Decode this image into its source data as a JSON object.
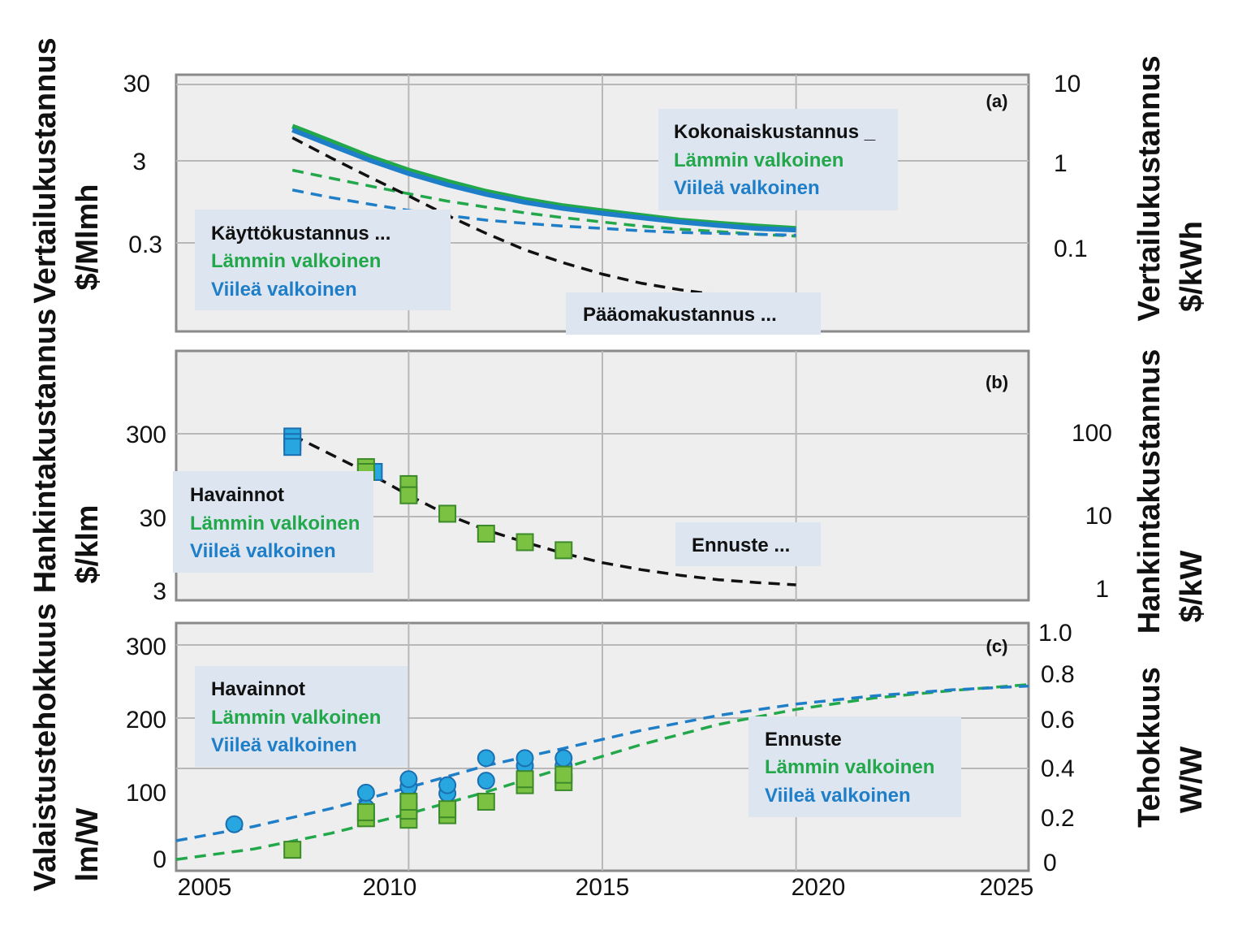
{
  "colors": {
    "warm": "#22a84a",
    "warm_marker": "#7cc242",
    "cool": "#1f7ec8",
    "cool_line": "#5ab4ea",
    "cool_marker": "#27a6e0",
    "black": "#111111",
    "panel_bg": "#eeeeee",
    "legend_bg": "#dde5f0"
  },
  "x_axis": {
    "range": [
      2004,
      2026
    ],
    "ticks": [
      "2005",
      "2010",
      "2015",
      "2020",
      "2025"
    ]
  },
  "chart_data": [
    {
      "panel_label": "(a)",
      "type": "line",
      "title": "",
      "xlabel": "",
      "ylabel": [
        "Vertailukustannus",
        "$/Mlmh"
      ],
      "y2label": [
        "Vertailukustannus",
        "$/kWh"
      ],
      "yscale": "log",
      "ylim": [
        0.03,
        30
      ],
      "y_ticks": [
        "30",
        "3",
        "0.3"
      ],
      "y2_ticks": [
        "10",
        "1",
        "0.1"
      ],
      "x": [
        2007,
        2008,
        2009,
        2010,
        2011,
        2012,
        2013,
        2014,
        2015,
        2016,
        2017,
        2018,
        2019,
        2020
      ],
      "series": [
        {
          "name": "Kokonaiskustannus – Lämmin valkoinen",
          "style": "solid",
          "color": "warm",
          "values": [
            7.5,
            5.0,
            3.3,
            2.3,
            1.7,
            1.3,
            1.05,
            0.88,
            0.77,
            0.68,
            0.6,
            0.55,
            0.51,
            0.48
          ]
        },
        {
          "name": "Kokonaiskustannus – Viileä valkoinen",
          "style": "solid",
          "color": "cool",
          "values": [
            6.8,
            4.5,
            3.0,
            2.1,
            1.55,
            1.2,
            0.97,
            0.82,
            0.72,
            0.64,
            0.57,
            0.52,
            0.48,
            0.46
          ]
        },
        {
          "name": "Käyttökustannus – Lämmin valkoinen",
          "style": "dashed",
          "color": "warm",
          "values": [
            2.3,
            1.85,
            1.5,
            1.22,
            1.0,
            0.85,
            0.73,
            0.64,
            0.57,
            0.51,
            0.47,
            0.44,
            0.41,
            0.39
          ]
        },
        {
          "name": "Käyttökustannus – Viileä valkoinen",
          "style": "dashed",
          "color": "cool",
          "values": [
            1.35,
            1.1,
            0.92,
            0.78,
            0.68,
            0.6,
            0.55,
            0.51,
            0.48,
            0.45,
            0.43,
            0.42,
            0.41,
            0.4
          ]
        },
        {
          "name": "Pääomakustannus",
          "style": "dashed",
          "color": "black",
          "values": [
            5.5,
            3.2,
            1.9,
            1.15,
            0.68,
            0.42,
            0.27,
            0.19,
            0.14,
            0.11,
            0.092,
            0.08,
            0.07,
            0.063
          ]
        }
      ],
      "legends": [
        {
          "title": "Kokonaiskustannus _",
          "warm": "Lämmin valkoinen",
          "cool": "Viileä valkoinen"
        },
        {
          "title": "Käyttökustannus ...",
          "warm": "Lämmin valkoinen",
          "cool": "Viileä valkoinen"
        },
        {
          "title": "Pääomakustannus ..."
        }
      ]
    },
    {
      "panel_label": "(b)",
      "type": "scatter",
      "title": "",
      "xlabel": "",
      "ylabel": [
        "Hankintakustannus",
        "$/klm"
      ],
      "y2label": [
        "Hankintakustannus",
        "$/kW"
      ],
      "yscale": "log",
      "ylim": [
        3,
        3000
      ],
      "y_ticks": [
        "300",
        "30",
        "3"
      ],
      "y2_ticks": [
        "100",
        "10",
        "1"
      ],
      "observations_warm": {
        "x": [
          2008.9,
          2008.9,
          2010.0,
          2010.0,
          2011.0,
          2012.0,
          2013.0,
          2014.0
        ],
        "values": [
          120,
          105,
          75,
          55,
          33,
          19,
          15,
          12
        ]
      },
      "observations_cool": {
        "x": [
          2007.0,
          2007.0,
          2007.0,
          2009.1
        ],
        "values": [
          280,
          240,
          210,
          105
        ]
      },
      "forecast": {
        "name": "Ennuste",
        "style": "dashed",
        "color": "black",
        "x": [
          2007,
          2008,
          2009,
          2010,
          2011,
          2012,
          2013,
          2014,
          2015,
          2016,
          2017,
          2018,
          2019,
          2020
        ],
        "values": [
          290,
          170,
          100,
          55,
          32,
          21,
          15,
          11,
          8.5,
          7.0,
          6.0,
          5.3,
          4.9,
          4.6
        ]
      },
      "legends": [
        {
          "title": "Havainnot",
          "warm": "Lämmin valkoinen",
          "cool": "Viileä valkoinen"
        },
        {
          "title": "Ennuste ..."
        }
      ]
    },
    {
      "panel_label": "(c)",
      "type": "scatter",
      "title": "",
      "xlabel": "",
      "ylabel": [
        "Valaistustehokkuus",
        "lm/W"
      ],
      "y2label": [
        "Tehokkuus",
        "W/W"
      ],
      "yscale": "linear",
      "ylim": [
        0,
        330
      ],
      "y_ticks": [
        "0",
        "100",
        "200",
        "300"
      ],
      "y2_ticks": [
        "0",
        "0.2",
        "0.4",
        "0.6",
        "0.8",
        "1.0"
      ],
      "observations_warm": {
        "x": [
          2007.0,
          2008.9,
          2008.9,
          2010.0,
          2010.0,
          2010.0,
          2011.0,
          2011.0,
          2012.0,
          2013.0,
          2013.0,
          2014.0,
          2014.0
        ],
        "values": [
          28,
          70,
          78,
          68,
          80,
          92,
          74,
          82,
          92,
          114,
          122,
          118,
          128
        ]
      },
      "observations_cool": {
        "x": [
          2005.5,
          2008.9,
          2008.9,
          2010.0,
          2010.0,
          2010.0,
          2011.0,
          2011.0,
          2011.0,
          2012.0,
          2012.0,
          2013.0,
          2013.0,
          2014.0,
          2014.0
        ],
        "values": [
          62,
          84,
          104,
          98,
          112,
          122,
          85,
          103,
          114,
          120,
          150,
          140,
          150,
          140,
          150
        ]
      },
      "forecasts": [
        {
          "name": "Ennuste – Lämmin valkoinen",
          "style": "dashed",
          "color": "warm",
          "x": [
            2004,
            2006,
            2008,
            2010,
            2012,
            2014,
            2016,
            2018,
            2020,
            2022,
            2024,
            2026
          ],
          "values": [
            15,
            29,
            50,
            76,
            105,
            137,
            168,
            195,
            215,
            230,
            240,
            248
          ]
        },
        {
          "name": "Ennuste – Viileä valkoinen",
          "style": "dashed",
          "color": "cool",
          "x": [
            2004,
            2006,
            2008,
            2010,
            2012,
            2014,
            2016,
            2018,
            2020,
            2022,
            2024,
            2026
          ],
          "values": [
            40,
            59,
            83,
            111,
            140,
            163,
            187,
            207,
            222,
            233,
            241,
            246
          ]
        }
      ],
      "legends": [
        {
          "title": "Havainnot",
          "warm": "Lämmin valkoinen",
          "cool": "Viileä valkoinen"
        },
        {
          "title": "Ennuste",
          "warm": "Lämmin valkoinen",
          "cool": "Viileä valkoinen"
        }
      ]
    }
  ]
}
